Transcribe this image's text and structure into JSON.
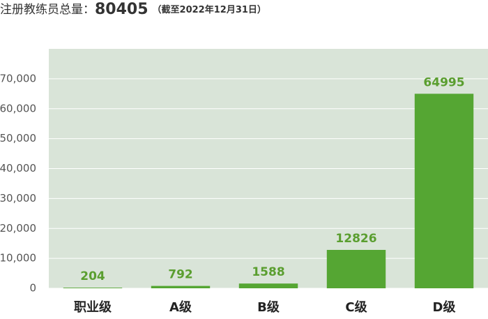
{
  "chart_data": {
    "type": "bar",
    "title": "注册教练员总量：",
    "total": 80405,
    "subtitle": "（截至2022年12月31日）",
    "categories": [
      "职业级",
      "A级",
      "B级",
      "C级",
      "D级"
    ],
    "values": [
      204,
      792,
      1588,
      12826,
      64995
    ],
    "color": "#55a633",
    "background": "#d9e4d8",
    "grid": true,
    "ylim": [
      0,
      80000
    ],
    "yticks": [
      0,
      {
        "value": 10000,
        "label": "10,000"
      },
      {
        "value": 20000,
        "label": "20,000"
      },
      {
        "value": 30000,
        "label": "30,000"
      },
      {
        "value": 40000,
        "label": "40,000"
      },
      {
        "value": 50000,
        "label": "50,000"
      },
      {
        "value": 60000,
        "label": "60,000"
      },
      {
        "value": 70000,
        "label": "70,000"
      }
    ]
  }
}
